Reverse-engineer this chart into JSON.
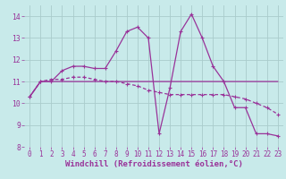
{
  "title": "",
  "xlabel": "Windchill (Refroidissement éolien,°C)",
  "background_color": "#c8eaea",
  "grid_color": "#aacccc",
  "line_color": "#993399",
  "xlim": [
    -0.5,
    23.5
  ],
  "ylim": [
    8,
    14.5
  ],
  "x_ticks": [
    0,
    1,
    2,
    3,
    4,
    5,
    6,
    7,
    8,
    9,
    10,
    11,
    12,
    13,
    14,
    15,
    16,
    17,
    18,
    19,
    20,
    21,
    22,
    23
  ],
  "y_ticks": [
    8,
    9,
    10,
    11,
    12,
    13,
    14
  ],
  "line1_x": [
    0,
    1,
    2,
    3,
    4,
    5,
    6,
    7,
    8,
    9,
    10,
    11,
    12,
    13,
    14,
    15,
    16,
    17,
    18,
    19,
    20,
    21,
    22,
    23
  ],
  "line1_y": [
    10.3,
    11.0,
    11.0,
    11.5,
    11.7,
    11.7,
    11.6,
    11.6,
    12.4,
    13.3,
    13.5,
    13.0,
    8.6,
    10.7,
    13.3,
    14.1,
    13.0,
    11.7,
    11.0,
    9.8,
    9.8,
    8.6,
    8.6,
    8.5
  ],
  "line2_x": [
    0,
    1,
    2,
    3,
    4,
    5,
    6,
    7,
    8,
    9,
    10,
    11,
    12,
    13,
    14,
    15,
    16,
    17,
    18,
    19,
    20,
    21,
    22,
    23
  ],
  "line2_y": [
    10.3,
    11.0,
    11.1,
    11.1,
    11.2,
    11.2,
    11.1,
    11.0,
    11.0,
    10.9,
    10.8,
    10.6,
    10.5,
    10.4,
    10.4,
    10.4,
    10.4,
    10.4,
    10.4,
    10.3,
    10.2,
    10.0,
    9.8,
    9.5
  ],
  "line3_x": [
    0,
    1,
    2,
    3,
    4,
    5,
    6,
    7,
    8,
    9,
    10,
    11,
    12,
    13,
    14,
    15,
    16,
    17,
    18,
    19,
    20,
    21,
    22,
    23
  ],
  "line3_y": [
    10.3,
    11.0,
    11.0,
    11.0,
    11.0,
    11.0,
    11.0,
    11.0,
    11.0,
    11.0,
    11.0,
    11.0,
    11.0,
    11.0,
    11.0,
    11.0,
    11.0,
    11.0,
    11.0,
    11.0,
    11.0,
    11.0,
    11.0,
    11.0
  ],
  "tick_fontsize": 5.5,
  "xlabel_fontsize": 6.5,
  "lw": 0.9,
  "marker_size": 2.5
}
